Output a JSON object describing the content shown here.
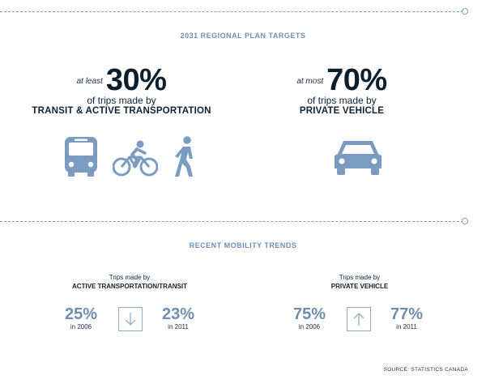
{
  "section1": {
    "heading": "2031 REGIONAL PLAN TARGETS",
    "left": {
      "qualifier": "at least",
      "percent": "30%",
      "line1": "of trips made by",
      "line2": "TRANSIT & ACTIVE TRANSPORTATION",
      "icons": [
        "bus-icon",
        "bicycle-icon",
        "pedestrian-icon"
      ]
    },
    "right": {
      "qualifier": "at most",
      "percent": "70%",
      "line1": "of trips made by",
      "line2": "PRIVATE VEHICLE",
      "icons": [
        "car-icon"
      ]
    }
  },
  "section2": {
    "heading": "RECENT MOBILITY TRENDS",
    "left": {
      "title_line1": "Trips made by",
      "title_line2": "ACTIVE TRANSPORTATION/TRANSIT",
      "from_value": "25%",
      "from_year": "in 2006",
      "direction": "down",
      "to_value": "23%",
      "to_year": "in 2011"
    },
    "right": {
      "title_line1": "Trips made by",
      "title_line2": "PRIVATE VEHICLE",
      "from_value": "75%",
      "from_year": "in 2006",
      "direction": "up",
      "to_value": "77%",
      "to_year": "in 2011"
    }
  },
  "source": "SOURCE: STATISTICS CANADA",
  "colors": {
    "accent": "#6f90b3",
    "icon": "#7b9cc0",
    "dark": "#0b1e2e",
    "divider": "#7f9fbb"
  }
}
